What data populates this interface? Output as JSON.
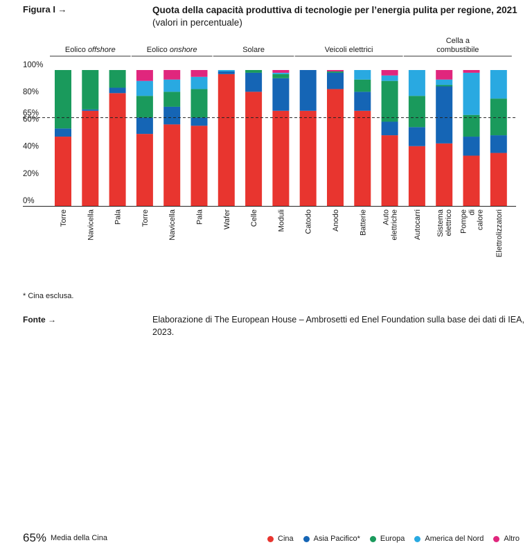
{
  "figure_label": "Figura I →",
  "title_main": "Quota della capacità produttiva di tecnologie per l’energia pulita per regione, 2021",
  "title_sub": "(valori in percentuale)",
  "avg_value": "65%",
  "avg_label": "Media della Cina",
  "footnote": "* Cina esclusa.",
  "source_label": "Fonte →",
  "source_text": "Elaborazione di The European House – Ambrosetti ed Enel Foundation sulla base dei dati di IEA, 2023.",
  "colors": {
    "Cina": "#e8352f",
    "Asia Pacifico*": "#1565b5",
    "Europa": "#1a9a5c",
    "America del Nord": "#29a9e1",
    "Altro": "#e0267d"
  },
  "chart_data": {
    "type": "bar",
    "stacked": true,
    "ylim": [
      0,
      100
    ],
    "yticks": [
      "0%",
      "20%",
      "40%",
      "60%",
      "80%",
      "100%"
    ],
    "reference_line": {
      "value": 65,
      "label": "65%"
    },
    "groups": [
      {
        "label": "Eolico offshore",
        "label_plain": "Eolico ",
        "label_italic": "offshore",
        "categories": [
          "Torre",
          "Navicella",
          "Pala"
        ]
      },
      {
        "label": "Eolico onshore",
        "label_plain": "Eolico ",
        "label_italic": "onshore",
        "categories": [
          "Torre",
          "Navicella",
          "Pala"
        ]
      },
      {
        "label": "Solare",
        "label_plain": "Solare",
        "label_italic": "",
        "categories": [
          "Wafer",
          "Celle",
          "Moduli"
        ]
      },
      {
        "label": "Veicoli elettrici",
        "label_plain": "Veicoli elettrici",
        "label_italic": "",
        "categories": [
          "Catodo",
          "Anodo",
          "Batterie",
          "Auto elettriche"
        ]
      },
      {
        "label": "Cella a combustibile",
        "label_plain": "Cella a combustibile",
        "label_italic": "",
        "categories": [
          "Autocarri",
          "Sistema elettrico",
          "Pompe di calore",
          "Elettrolizzatori"
        ]
      }
    ],
    "categories": [
      "Torre",
      "Navicella",
      "Pala",
      "Torre",
      "Navicella",
      "Pala",
      "Wafer",
      "Celle",
      "Moduli",
      "Catodo",
      "Anodo",
      "Batterie",
      "Auto elettriche",
      "Autocarri",
      "Sistema elettrico",
      "Pompe di calore",
      "Elettrolizzatori"
    ],
    "series": [
      {
        "name": "Cina",
        "values": [
          51,
          70,
          83,
          53,
          60,
          59,
          97,
          84,
          70,
          70,
          86,
          70,
          52,
          44,
          46,
          37,
          39
        ]
      },
      {
        "name": "Asia Pacifico*",
        "values": [
          6,
          1,
          4,
          12,
          13,
          6,
          2,
          14,
          24,
          30,
          12,
          14,
          10,
          14,
          42,
          14,
          13
        ]
      },
      {
        "name": "Europa",
        "values": [
          43,
          29,
          13,
          16,
          11,
          21,
          0,
          2,
          3,
          0,
          1,
          9,
          30,
          23,
          1,
          16,
          27
        ]
      },
      {
        "name": "America del Nord",
        "values": [
          0,
          0,
          0,
          11,
          9,
          9,
          1,
          0,
          1,
          0,
          0,
          7,
          4,
          19,
          4,
          31,
          21
        ]
      },
      {
        "name": "Altro",
        "values": [
          0,
          0,
          0,
          8,
          7,
          5,
          0,
          0,
          2,
          0,
          1,
          0,
          4,
          0,
          7,
          2,
          0
        ]
      }
    ]
  }
}
